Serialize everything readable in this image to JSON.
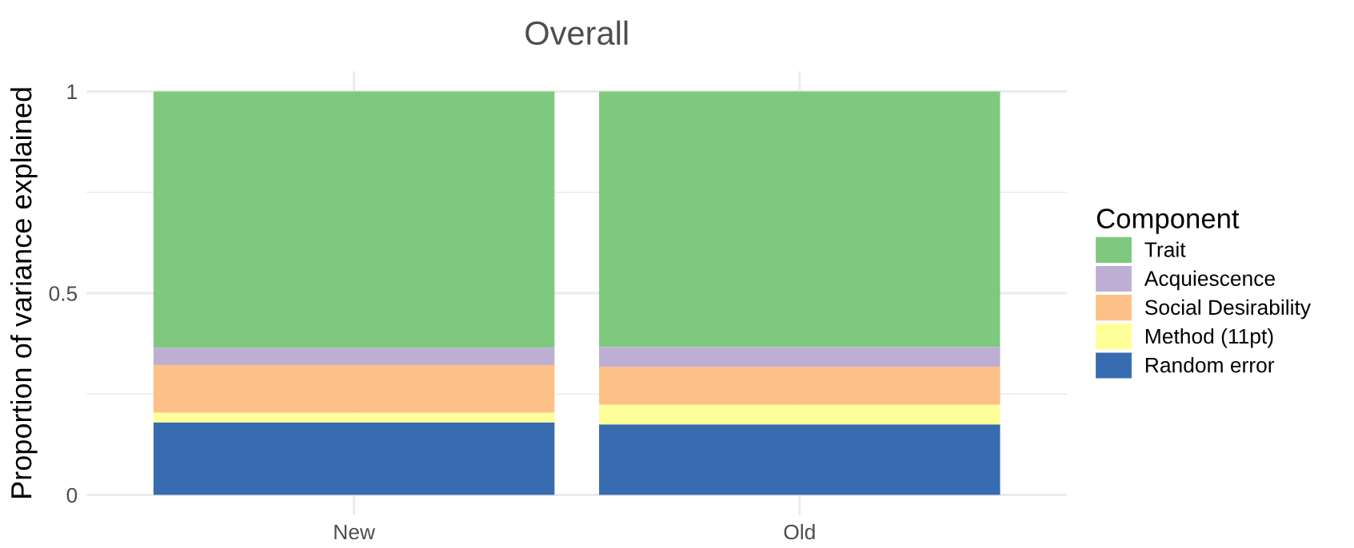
{
  "chart_data": {
    "type": "bar",
    "title": "Overall",
    "ylabel": "Proportion of variance explained",
    "legend_title": "Component",
    "categories": [
      "New",
      "Old"
    ],
    "stacked": true,
    "series": [
      {
        "name": "Random error",
        "color": "#386cb0",
        "values": [
          0.18,
          0.175
        ]
      },
      {
        "name": "Method (11pt)",
        "color": "#ffff99",
        "values": [
          0.024,
          0.049
        ]
      },
      {
        "name": "Social Desirability",
        "color": "#fdc086",
        "values": [
          0.118,
          0.094
        ]
      },
      {
        "name": "Acquiescence",
        "color": "#beaed4",
        "values": [
          0.043,
          0.049
        ]
      },
      {
        "name": "Trait",
        "color": "#7fc97f",
        "values": [
          0.635,
          0.633
        ]
      }
    ],
    "ylim": [
      -0.05,
      1.05
    ],
    "yticks": [
      0,
      {
        "value": 0.25,
        "label": null
      },
      0.5,
      {
        "value": 0.75,
        "label": null
      },
      1
    ],
    "grid": true,
    "legend": "right"
  }
}
